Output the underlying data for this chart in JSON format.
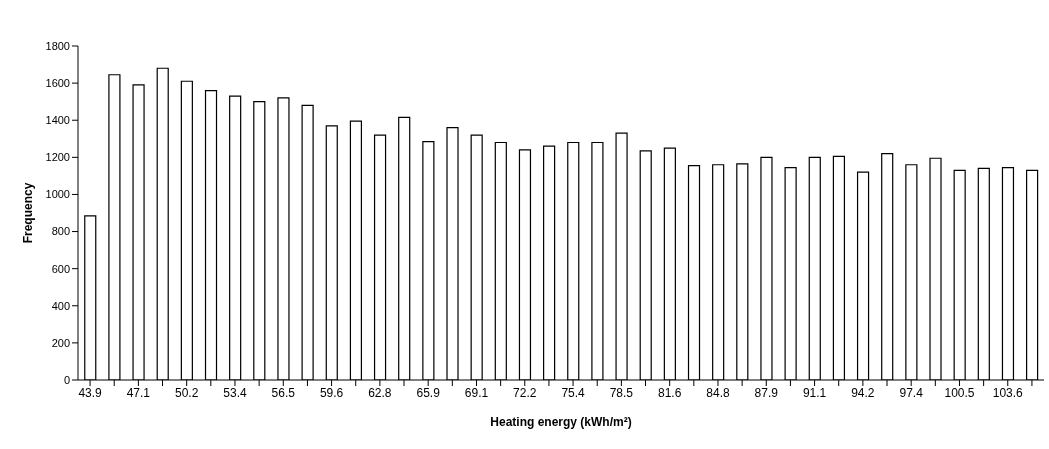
{
  "chart_data": {
    "type": "bar",
    "xlabel": "Heating energy (kWh/m²)",
    "ylabel": "Frequency",
    "categories": [
      "43.9",
      null,
      "47.1",
      null,
      "50.2",
      null,
      "53.4",
      null,
      "56.5",
      null,
      "59.6",
      null,
      "62.8",
      null,
      "65.9",
      null,
      "69.1",
      null,
      "72.2",
      null,
      "75.4",
      null,
      "78.5",
      null,
      "81.6",
      null,
      "84.8",
      null,
      "87.9",
      null,
      "91.1",
      null,
      "94.2",
      null,
      "97.4",
      null,
      "100.5",
      null,
      "103.6",
      null
    ],
    "values": [
      885,
      1645,
      1590,
      1680,
      1610,
      1560,
      1530,
      1500,
      1520,
      1480,
      1370,
      1395,
      1320,
      1415,
      1285,
      1360,
      1320,
      1280,
      1240,
      1260,
      1280,
      1280,
      1330,
      1235,
      1250,
      1155,
      1160,
      1165,
      1200,
      1145,
      1200,
      1205,
      1120,
      1220,
      1160,
      1195,
      1130,
      1140,
      1145,
      1130
    ],
    "color": "#ffffff",
    "ylim": [
      0,
      1800
    ],
    "yticks": [
      0,
      200,
      400,
      600,
      800,
      1000,
      1200,
      1400,
      1600,
      1800
    ],
    "grid": false,
    "legend": false
  }
}
